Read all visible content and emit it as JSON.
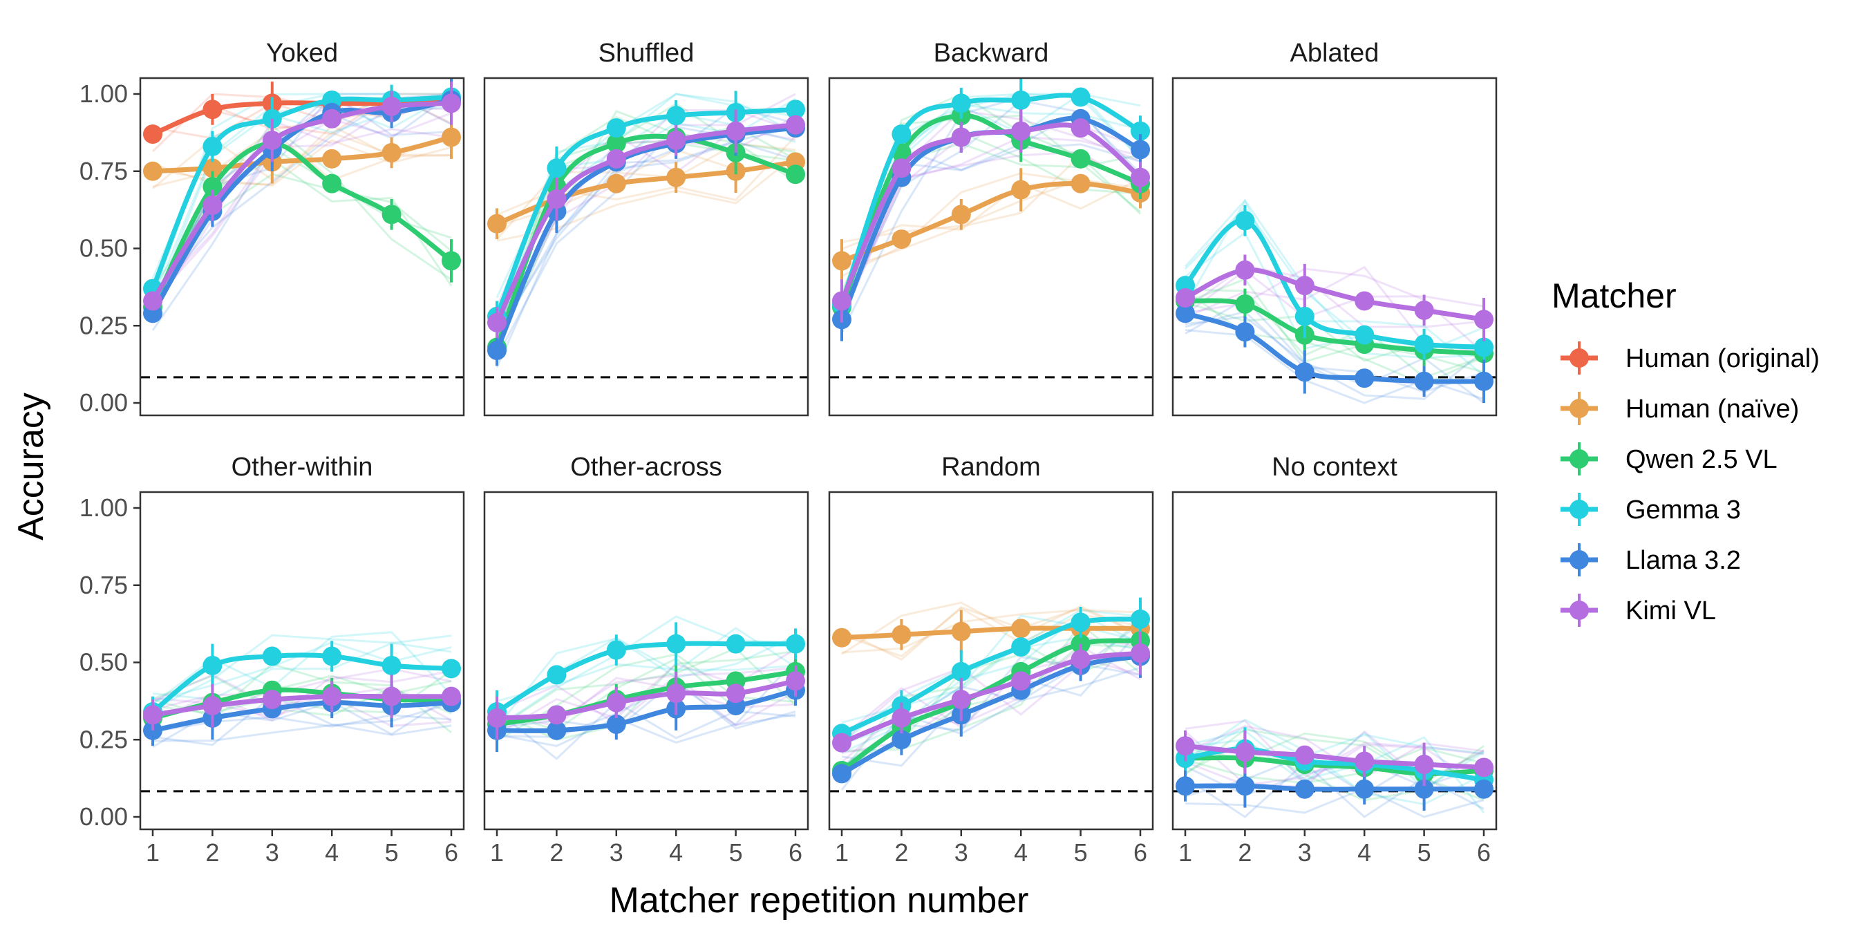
{
  "chart_data": {
    "type": "line",
    "xlabel": "Matcher repetition number",
    "ylabel": "Accuracy",
    "x": [
      1,
      2,
      3,
      4,
      5,
      6
    ],
    "xticks": [
      "1",
      "2",
      "3",
      "4",
      "5",
      "6"
    ],
    "ylim": [
      0,
      1
    ],
    "yticks": [
      "0.00",
      "0.25",
      "0.50",
      "0.75",
      "1.00"
    ],
    "chance_level": 0.083,
    "legend": {
      "title": "Matcher",
      "position": "right",
      "entries": [
        {
          "name": "Human (original)",
          "color": "#ef6548"
        },
        {
          "name": "Human (naïve)",
          "color": "#e8a14e"
        },
        {
          "name": "Qwen 2.5 VL",
          "color": "#2ecc71"
        },
        {
          "name": "Gemma 3",
          "color": "#22d0e0"
        },
        {
          "name": "Llama 3.2",
          "color": "#3f86df"
        },
        {
          "name": "Kimi VL",
          "color": "#b56ee0"
        }
      ]
    },
    "panels": [
      {
        "title": "Yoked",
        "series": [
          {
            "name": "Human (original)",
            "values": [
              0.87,
              0.95,
              0.97,
              0.97,
              0.97,
              0.98
            ]
          },
          {
            "name": "Human (naïve)",
            "values": [
              0.75,
              0.76,
              0.78,
              0.79,
              0.81,
              0.86
            ]
          },
          {
            "name": "Qwen 2.5 VL",
            "values": [
              0.31,
              0.7,
              0.84,
              0.71,
              0.61,
              0.46
            ]
          },
          {
            "name": "Gemma 3",
            "values": [
              0.37,
              0.83,
              0.92,
              0.98,
              0.98,
              0.99
            ]
          },
          {
            "name": "Llama 3.2",
            "values": [
              0.29,
              0.62,
              0.82,
              0.94,
              0.94,
              0.98
            ]
          },
          {
            "name": "Kimi VL",
            "values": [
              0.33,
              0.64,
              0.85,
              0.92,
              0.96,
              0.97
            ]
          }
        ]
      },
      {
        "title": "Shuffled",
        "series": [
          {
            "name": "Human (naïve)",
            "values": [
              0.58,
              0.66,
              0.71,
              0.73,
              0.75,
              0.78
            ]
          },
          {
            "name": "Qwen 2.5 VL",
            "values": [
              0.18,
              0.7,
              0.84,
              0.86,
              0.81,
              0.74
            ]
          },
          {
            "name": "Gemma 3",
            "values": [
              0.28,
              0.76,
              0.89,
              0.93,
              0.94,
              0.95
            ]
          },
          {
            "name": "Llama 3.2",
            "values": [
              0.17,
              0.62,
              0.78,
              0.84,
              0.87,
              0.89
            ]
          },
          {
            "name": "Kimi VL",
            "values": [
              0.26,
              0.66,
              0.79,
              0.85,
              0.88,
              0.9
            ]
          }
        ]
      },
      {
        "title": "Backward",
        "series": [
          {
            "name": "Human (naïve)",
            "values": [
              0.46,
              0.53,
              0.61,
              0.69,
              0.71,
              0.68
            ]
          },
          {
            "name": "Qwen 2.5 VL",
            "values": [
              0.31,
              0.81,
              0.93,
              0.85,
              0.79,
              0.71
            ]
          },
          {
            "name": "Gemma 3",
            "values": [
              0.32,
              0.87,
              0.97,
              0.98,
              0.99,
              0.88
            ]
          },
          {
            "name": "Llama 3.2",
            "values": [
              0.27,
              0.73,
              0.86,
              0.88,
              0.92,
              0.82
            ]
          },
          {
            "name": "Kimi VL",
            "values": [
              0.33,
              0.76,
              0.86,
              0.88,
              0.89,
              0.73
            ]
          }
        ]
      },
      {
        "title": "Ablated",
        "series": [
          {
            "name": "Qwen 2.5 VL",
            "values": [
              0.33,
              0.32,
              0.22,
              0.19,
              0.17,
              0.16
            ]
          },
          {
            "name": "Gemma 3",
            "values": [
              0.38,
              0.59,
              0.28,
              0.22,
              0.19,
              0.18
            ]
          },
          {
            "name": "Llama 3.2",
            "values": [
              0.29,
              0.23,
              0.1,
              0.08,
              0.07,
              0.07
            ]
          },
          {
            "name": "Kimi VL",
            "values": [
              0.34,
              0.43,
              0.38,
              0.33,
              0.3,
              0.27
            ]
          }
        ]
      },
      {
        "title": "Other-within",
        "series": [
          {
            "name": "Qwen 2.5 VL",
            "values": [
              0.32,
              0.37,
              0.41,
              0.4,
              0.38,
              0.38
            ]
          },
          {
            "name": "Gemma 3",
            "values": [
              0.34,
              0.49,
              0.52,
              0.52,
              0.49,
              0.48
            ]
          },
          {
            "name": "Llama 3.2",
            "values": [
              0.28,
              0.32,
              0.35,
              0.37,
              0.36,
              0.37
            ]
          },
          {
            "name": "Kimi VL",
            "values": [
              0.33,
              0.36,
              0.38,
              0.39,
              0.39,
              0.39
            ]
          }
        ]
      },
      {
        "title": "Other-across",
        "series": [
          {
            "name": "Qwen 2.5 VL",
            "values": [
              0.3,
              0.33,
              0.38,
              0.42,
              0.44,
              0.47
            ]
          },
          {
            "name": "Gemma 3",
            "values": [
              0.34,
              0.46,
              0.54,
              0.56,
              0.56,
              0.56
            ]
          },
          {
            "name": "Llama 3.2",
            "values": [
              0.28,
              0.28,
              0.3,
              0.35,
              0.36,
              0.41
            ]
          },
          {
            "name": "Kimi VL",
            "values": [
              0.32,
              0.33,
              0.37,
              0.4,
              0.4,
              0.44
            ]
          }
        ]
      },
      {
        "title": "Random",
        "series": [
          {
            "name": "Human (naïve)",
            "values": [
              0.58,
              0.59,
              0.6,
              0.61,
              0.61,
              0.61
            ]
          },
          {
            "name": "Qwen 2.5 VL",
            "values": [
              0.15,
              0.29,
              0.37,
              0.47,
              0.56,
              0.57
            ]
          },
          {
            "name": "Gemma 3",
            "values": [
              0.27,
              0.36,
              0.47,
              0.55,
              0.63,
              0.64
            ]
          },
          {
            "name": "Llama 3.2",
            "values": [
              0.14,
              0.25,
              0.33,
              0.41,
              0.49,
              0.52
            ]
          },
          {
            "name": "Kimi VL",
            "values": [
              0.24,
              0.32,
              0.38,
              0.44,
              0.51,
              0.53
            ]
          }
        ]
      },
      {
        "title": "No context",
        "series": [
          {
            "name": "Qwen 2.5 VL",
            "values": [
              0.19,
              0.19,
              0.17,
              0.16,
              0.14,
              0.15
            ]
          },
          {
            "name": "Gemma 3",
            "values": [
              0.19,
              0.22,
              0.18,
              0.17,
              0.15,
              0.12
            ]
          },
          {
            "name": "Llama 3.2",
            "values": [
              0.1,
              0.1,
              0.09,
              0.09,
              0.09,
              0.09
            ]
          },
          {
            "name": "Kimi VL",
            "values": [
              0.23,
              0.21,
              0.2,
              0.18,
              0.17,
              0.16
            ]
          }
        ]
      }
    ]
  }
}
